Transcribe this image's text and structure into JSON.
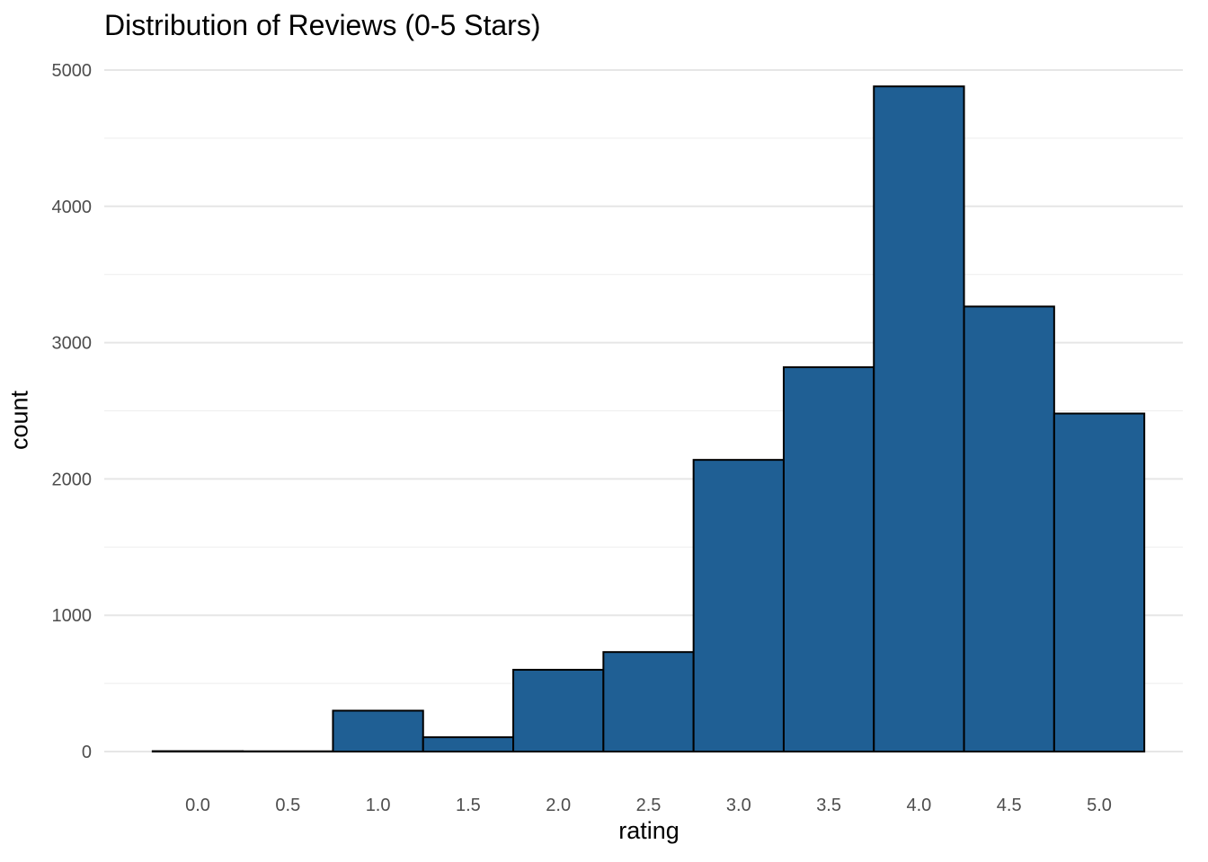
{
  "chart_data": {
    "type": "bar",
    "title": "Distribution of Reviews (0-5 Stars)",
    "xlabel": "rating",
    "ylabel": "count",
    "bin_width": 0.5,
    "x": [
      0.0,
      0.5,
      1.0,
      1.5,
      2.0,
      2.5,
      3.0,
      3.5,
      4.0,
      4.5,
      5.0
    ],
    "values": [
      3,
      2,
      300,
      105,
      600,
      730,
      2140,
      2820,
      4880,
      3265,
      2480
    ],
    "x_ticks": [
      "0.0",
      "0.5",
      "1.0",
      "1.5",
      "2.0",
      "2.5",
      "3.0",
      "3.5",
      "4.0",
      "4.5",
      "5.0"
    ],
    "y_ticks": [
      0,
      1000,
      2000,
      3000,
      4000,
      5000
    ],
    "xlim": [
      -0.25,
      5.25
    ],
    "ylim": [
      0,
      5000
    ],
    "grid": true,
    "colors": {
      "bar_fill": "#1f5f94",
      "bar_stroke": "#000000",
      "grid_major": "#e6e6e6",
      "grid_minor": "#f0f0f0",
      "tick_text": "#4d4d4d"
    }
  }
}
